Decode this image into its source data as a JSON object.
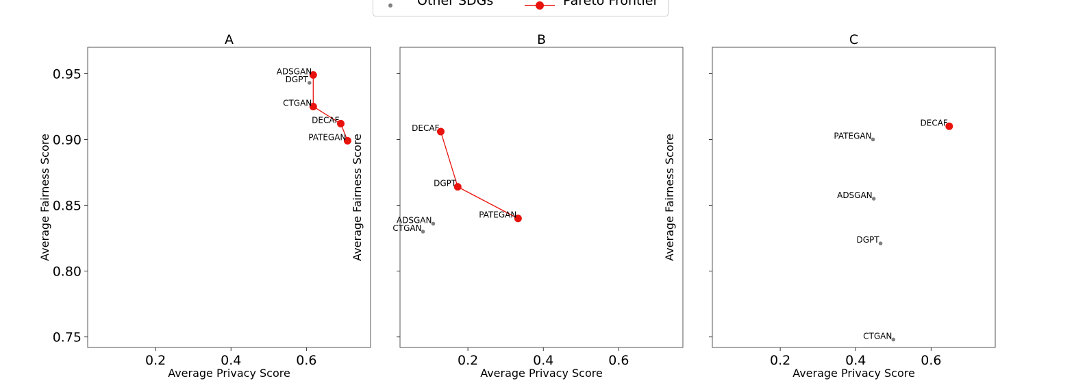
{
  "legend": {
    "other_label": "Other SDGs",
    "pareto_label": "Pareto Frontier",
    "other_color": "#808080",
    "pareto_color": "#e8130c"
  },
  "chart_data": [
    {
      "type": "scatter",
      "title": "A",
      "xlabel": "Average Privacy Score",
      "ylabel": "Average Fairness Score",
      "xlim": [
        0.02,
        0.77
      ],
      "ylim": [
        0.742,
        0.97
      ],
      "xticks": [
        0.2,
        0.4,
        0.6
      ],
      "xtick_labels": [
        "0.2",
        "0.4",
        "0.6"
      ],
      "yticks": [
        0.75,
        0.8,
        0.85,
        0.9,
        0.95
      ],
      "ytick_labels": [
        "0.75",
        "0.80",
        "0.85",
        "0.90",
        "0.95"
      ],
      "points": [
        {
          "name": "ADSGAN",
          "x": 0.618,
          "y": 0.949,
          "pareto": true
        },
        {
          "name": "DGPT",
          "x": 0.608,
          "y": 0.943,
          "pareto": false
        },
        {
          "name": "CTGAN",
          "x": 0.618,
          "y": 0.925,
          "pareto": true
        },
        {
          "name": "DECAF",
          "x": 0.691,
          "y": 0.912,
          "pareto": true
        },
        {
          "name": "PATEGAN",
          "x": 0.709,
          "y": 0.899,
          "pareto": true
        }
      ]
    },
    {
      "type": "scatter",
      "title": "B",
      "xlabel": "Average Privacy Score",
      "ylabel": "Average Fairness Score",
      "xlim": [
        0.02,
        0.77
      ],
      "ylim": [
        0.742,
        0.97
      ],
      "xticks": [
        0.2,
        0.4,
        0.6
      ],
      "xtick_labels": [
        "0.2",
        "0.4",
        "0.6"
      ],
      "yticks": [
        0.75,
        0.8,
        0.85,
        0.9,
        0.95
      ],
      "ytick_labels": [],
      "points": [
        {
          "name": "DECAF",
          "x": 0.128,
          "y": 0.906,
          "pareto": true
        },
        {
          "name": "DGPT",
          "x": 0.173,
          "y": 0.864,
          "pareto": true
        },
        {
          "name": "PATEGAN",
          "x": 0.333,
          "y": 0.84,
          "pareto": true
        },
        {
          "name": "ADSGAN",
          "x": 0.108,
          "y": 0.836,
          "pareto": false
        },
        {
          "name": "CTGAN",
          "x": 0.081,
          "y": 0.83,
          "pareto": false
        }
      ]
    },
    {
      "type": "scatter",
      "title": "C",
      "xlabel": "Average Privacy Score",
      "ylabel": "Average Fairness Score",
      "xlim": [
        0.02,
        0.77
      ],
      "ylim": [
        0.742,
        0.97
      ],
      "xticks": [
        0.2,
        0.4,
        0.6
      ],
      "xtick_labels": [
        "0.2",
        "0.4",
        "0.6"
      ],
      "yticks": [
        0.75,
        0.8,
        0.85,
        0.9,
        0.95
      ],
      "ytick_labels": [],
      "points": [
        {
          "name": "DECAF",
          "x": 0.648,
          "y": 0.91,
          "pareto": true
        },
        {
          "name": "PATEGAN",
          "x": 0.446,
          "y": 0.9,
          "pareto": false
        },
        {
          "name": "ADSGAN",
          "x": 0.448,
          "y": 0.855,
          "pareto": false
        },
        {
          "name": "DGPT",
          "x": 0.466,
          "y": 0.821,
          "pareto": false
        },
        {
          "name": "CTGAN",
          "x": 0.5,
          "y": 0.748,
          "pareto": false
        }
      ]
    }
  ]
}
